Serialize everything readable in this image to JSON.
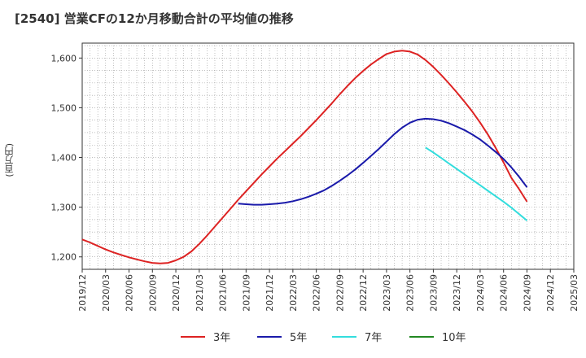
{
  "chart_data": {
    "type": "line",
    "title": "[2540]  営業CFの12か月移動合計の平均値の推移",
    "ylabel": "(百万円)",
    "xlabel": "",
    "ylim": [
      1175,
      1630
    ],
    "y_ticks": [
      1200,
      1300,
      1400,
      1500,
      1600
    ],
    "y_tick_labels": [
      "1,200",
      "1,300",
      "1,400",
      "1,500",
      "1,600"
    ],
    "x_ticks": [
      "2019/12",
      "2020/03",
      "2020/06",
      "2020/09",
      "2020/12",
      "2021/03",
      "2021/06",
      "2021/09",
      "2021/12",
      "2022/03",
      "2022/06",
      "2022/09",
      "2022/12",
      "2023/03",
      "2023/06",
      "2023/09",
      "2023/12",
      "2024/03",
      "2024/06",
      "2024/09",
      "2024/12",
      "2025/03"
    ],
    "grid": true,
    "legend_position": "bottom",
    "series": [
      {
        "name": "3年",
        "color": "#dd2222",
        "points": [
          [
            "2019/12",
            1235
          ],
          [
            "2020/01",
            1229
          ],
          [
            "2020/02",
            1222
          ],
          [
            "2020/03",
            1215
          ],
          [
            "2020/04",
            1209
          ],
          [
            "2020/05",
            1204
          ],
          [
            "2020/06",
            1199
          ],
          [
            "2020/07",
            1195
          ],
          [
            "2020/08",
            1191
          ],
          [
            "2020/09",
            1188
          ],
          [
            "2020/10",
            1187
          ],
          [
            "2020/11",
            1188
          ],
          [
            "2020/12",
            1193
          ],
          [
            "2021/01",
            1200
          ],
          [
            "2021/02",
            1211
          ],
          [
            "2021/03",
            1226
          ],
          [
            "2021/04",
            1243
          ],
          [
            "2021/05",
            1261
          ],
          [
            "2021/06",
            1279
          ],
          [
            "2021/07",
            1297
          ],
          [
            "2021/08",
            1315
          ],
          [
            "2021/09",
            1332
          ],
          [
            "2021/10",
            1349
          ],
          [
            "2021/11",
            1366
          ],
          [
            "2021/12",
            1382
          ],
          [
            "2022/01",
            1398
          ],
          [
            "2022/02",
            1413
          ],
          [
            "2022/03",
            1428
          ],
          [
            "2022/04",
            1443
          ],
          [
            "2022/05",
            1459
          ],
          [
            "2022/06",
            1475
          ],
          [
            "2022/07",
            1492
          ],
          [
            "2022/08",
            1509
          ],
          [
            "2022/09",
            1527
          ],
          [
            "2022/10",
            1544
          ],
          [
            "2022/11",
            1560
          ],
          [
            "2022/12",
            1574
          ],
          [
            "2023/01",
            1587
          ],
          [
            "2023/02",
            1598
          ],
          [
            "2023/03",
            1608
          ],
          [
            "2023/04",
            1613
          ],
          [
            "2023/05",
            1615
          ],
          [
            "2023/06",
            1613
          ],
          [
            "2023/07",
            1607
          ],
          [
            "2023/08",
            1596
          ],
          [
            "2023/09",
            1582
          ],
          [
            "2023/10",
            1566
          ],
          [
            "2023/11",
            1549
          ],
          [
            "2023/12",
            1531
          ],
          [
            "2024/01",
            1512
          ],
          [
            "2024/02",
            1492
          ],
          [
            "2024/03",
            1470
          ],
          [
            "2024/04",
            1446
          ],
          [
            "2024/05",
            1419
          ],
          [
            "2024/06",
            1390
          ],
          [
            "2024/07",
            1359
          ],
          [
            "2024/08",
            1336
          ],
          [
            "2024/09",
            1311
          ]
        ]
      },
      {
        "name": "5年",
        "color": "#1a1aaa",
        "points": [
          [
            "2021/08",
            1307
          ],
          [
            "2021/09",
            1306
          ],
          [
            "2021/10",
            1305
          ],
          [
            "2021/11",
            1305
          ],
          [
            "2021/12",
            1306
          ],
          [
            "2022/01",
            1307
          ],
          [
            "2022/02",
            1309
          ],
          [
            "2022/03",
            1312
          ],
          [
            "2022/04",
            1316
          ],
          [
            "2022/05",
            1321
          ],
          [
            "2022/06",
            1327
          ],
          [
            "2022/07",
            1334
          ],
          [
            "2022/08",
            1343
          ],
          [
            "2022/09",
            1353
          ],
          [
            "2022/10",
            1364
          ],
          [
            "2022/11",
            1376
          ],
          [
            "2022/12",
            1389
          ],
          [
            "2023/01",
            1403
          ],
          [
            "2023/02",
            1417
          ],
          [
            "2023/03",
            1432
          ],
          [
            "2023/04",
            1447
          ],
          [
            "2023/05",
            1460
          ],
          [
            "2023/06",
            1470
          ],
          [
            "2023/07",
            1476
          ],
          [
            "2023/08",
            1478
          ],
          [
            "2023/09",
            1477
          ],
          [
            "2023/10",
            1474
          ],
          [
            "2023/11",
            1469
          ],
          [
            "2023/12",
            1462
          ],
          [
            "2024/01",
            1455
          ],
          [
            "2024/02",
            1446
          ],
          [
            "2024/03",
            1436
          ],
          [
            "2024/04",
            1424
          ],
          [
            "2024/05",
            1411
          ],
          [
            "2024/06",
            1397
          ],
          [
            "2024/07",
            1380
          ],
          [
            "2024/08",
            1361
          ],
          [
            "2024/09",
            1340
          ]
        ]
      },
      {
        "name": "7年",
        "color": "#33dddd",
        "points": [
          [
            "2023/08",
            1420
          ],
          [
            "2023/09",
            1410
          ],
          [
            "2023/10",
            1399
          ],
          [
            "2023/11",
            1388
          ],
          [
            "2023/12",
            1377
          ],
          [
            "2024/01",
            1366
          ],
          [
            "2024/02",
            1355
          ],
          [
            "2024/03",
            1344
          ],
          [
            "2024/04",
            1333
          ],
          [
            "2024/05",
            1322
          ],
          [
            "2024/06",
            1311
          ],
          [
            "2024/07",
            1299
          ],
          [
            "2024/08",
            1286
          ],
          [
            "2024/09",
            1273
          ]
        ]
      },
      {
        "name": "10年",
        "color": "#228822",
        "points": []
      }
    ]
  }
}
